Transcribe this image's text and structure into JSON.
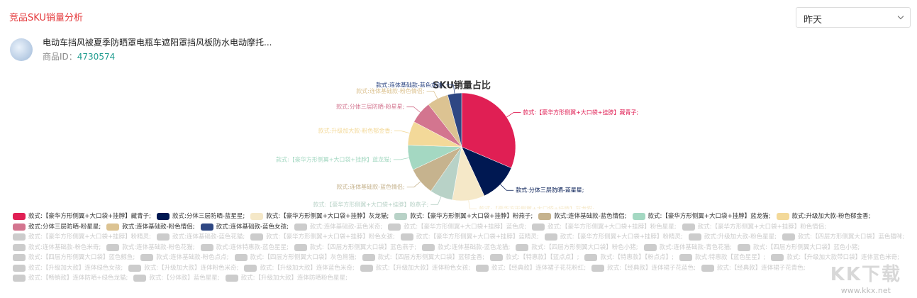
{
  "header": {
    "title": "竞品SKU销量分析",
    "period": "昨天"
  },
  "product": {
    "name": "电动车挡风被夏季防晒罩电瓶车遮阳罩挡风板防水电动摩托...",
    "id_label": "商品ID：",
    "id": "4730574"
  },
  "chart_data": {
    "type": "pie",
    "title": "SKU销量占比",
    "categories": [
      "款式:【豪华方形侧翼+大口袋+挂脖】藏青子;",
      "款式:分体三层防晒-蓝星星;",
      "款式:【豪华方形侧翼+大口袋+挂脖】灰龙猫;",
      "款式:【豪华方形侧翼+大口袋+挂脖】粉燕子;",
      "款式:连体基础款-蓝色情侣;",
      "款式:【豪华方形侧翼+大口袋+挂脖】蓝龙猫;",
      "款式:升级加大款-粉色郁金香;",
      "款式:分体三层防晒-粉星星;",
      "款式:连体基础款-粉色情侣;",
      "款式:连体基础款-蓝色女孩;"
    ],
    "values": [
      31.4,
      11.7,
      9.7,
      6.9,
      8.3,
      7.5,
      7.2,
      6.7,
      6.4,
      4.2
    ],
    "colors": [
      "#e01f54",
      "#001852",
      "#f5e8c8",
      "#b8d2c7",
      "#c6b38e",
      "#a4d8c2",
      "#f3d999",
      "#d3758f",
      "#dcc392",
      "#2e4783"
    ],
    "legend_inactive": [
      "款式:连体基础款-蓝色米奇;",
      "款式:【豪华方形侧翼+大口袋+挂脖】蓝色虎;",
      "款式:【豪华方形侧翼+大口袋+挂脖】粉色星星;",
      "款式:【豪华方形侧翼+大口袋+挂脖】粉色情侣;",
      "款式:【豪华方形侧翼+大口袋+挂脖】粉精灵;",
      "款式:连体基础款-蓝色花猫;",
      "款式:【豪华方形侧翼+大口袋+挂脖】粉色女孩;",
      "款式:【豪华方形侧翼+大口袋+挂脖】蓝精灵;",
      "款式:【豪华方形侧翼+大口袋+挂脖】粉精灵;",
      "款式:升级加大款-粉色星星;",
      "款式:【四层方形侧翼大口袋】蓝色猫咪;",
      "款式:连体基础款-粉色米奇;",
      "款式:连体基础款-粉色花猫;",
      "款式:连体特惠款-蓝色星星;",
      "款式:【四层方形侧翼大口袋】蓝色燕子;",
      "款式:连体基础款-蓝色龙猫;",
      "款式:【四层方形侧翼大口袋】粉色小猪;",
      "款式:连体基础款-青色花猫;",
      "款式:【四层方形侧翼大口袋】蓝色小猪;",
      "款式:【四层方形侧翼大口袋】蓝色鲸鱼;",
      "款式:连体基础款-粉色点点;",
      "款式:【四层方形侧翼大口袋】灰色熊猫;",
      "款式:【四层方形侧翼大口袋】蓝郁金香;",
      "款式:【特惠款】【蓝点点】;",
      "款式:【特惠款】【粉点点】;",
      "款式:特惠款【蓝色星星】;",
      "款式:【升级加大款带口袋】连体蓝色米奇;",
      "款式:【升级加大款】连体绿色女孩;",
      "款式:【升级加大款】连体粉色米奇;",
      "款式:【升级加大款】连体蓝色米奇;",
      "款式:【升级加大款】连体粉色女孩;",
      "款式:【经典款】连体裙子花花粉红;",
      "款式:【经典款】连体裙子花蓝色;",
      "款式:【经典款】连体裙子花青色;",
      "款式:【畅销款】连体防晒+绿色龙猫;",
      "款式:【分体款】蓝色星星;",
      "款式:【升级加大款】连体防晒粉色星星;"
    ]
  },
  "watermark": {
    "brand": "KK下载",
    "url": "www.kkx.net"
  }
}
